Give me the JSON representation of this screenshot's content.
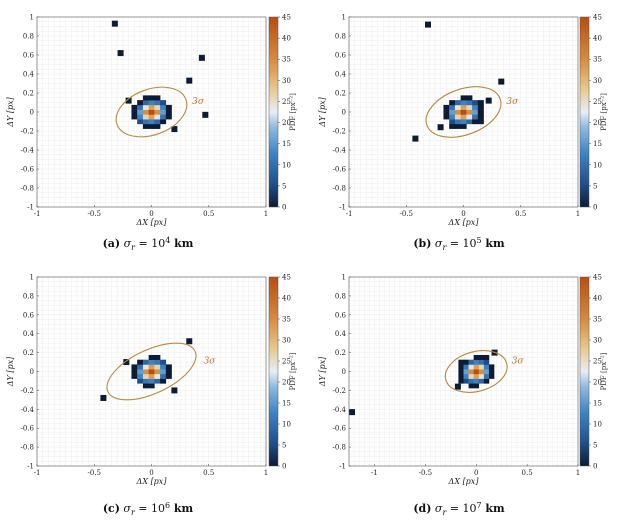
{
  "figure": {
    "captions": [
      {
        "tag": "(a)",
        "sym": "σ",
        "sub": "r",
        "eq": " = 10",
        "exp": "4",
        "unit": " km"
      },
      {
        "tag": "(b)",
        "sym": "σ",
        "sub": "r",
        "eq": " = 10",
        "exp": "5",
        "unit": " km"
      },
      {
        "tag": "(c)",
        "sym": "σ",
        "sub": "r",
        "eq": " = 10",
        "exp": "6",
        "unit": " km"
      },
      {
        "tag": "(d)",
        "sym": "σ",
        "sub": "r",
        "eq": " = 10",
        "exp": "7",
        "unit": " km"
      }
    ]
  },
  "chart_data": [
    {
      "type": "heatmap",
      "xlabel": "ΔX [px]",
      "ylabel": "ΔY [px]",
      "xlim": [
        -1,
        1
      ],
      "ylim": [
        -1,
        1
      ],
      "xticks": [
        -1,
        -0.5,
        0,
        0.5,
        1
      ],
      "yticks": [
        -1,
        -0.8,
        -0.6,
        -0.4,
        -0.2,
        0,
        0.2,
        0.4,
        0.6,
        0.8,
        1
      ],
      "colorbar": {
        "label": "PDF [px⁻²]",
        "min": 0,
        "max": 45,
        "ticks": [
          0,
          5,
          10,
          15,
          20,
          25,
          30,
          35,
          40,
          45
        ]
      },
      "ellipse": {
        "label": "3σ",
        "cx": 0,
        "cy": 0,
        "rx": 0.32,
        "ry": 0.24,
        "angle_deg": 20
      },
      "outliers": [
        [
          -0.32,
          0.93
        ],
        [
          -0.27,
          0.62
        ],
        [
          0.44,
          0.57
        ],
        [
          0.33,
          0.33
        ],
        [
          0.47,
          -0.03
        ],
        [
          -0.2,
          0.12
        ],
        [
          0.2,
          -0.18
        ]
      ],
      "grid": true
    },
    {
      "type": "heatmap",
      "xlabel": "ΔX [px]",
      "ylabel": "ΔY [px]",
      "xlim": [
        -1,
        1
      ],
      "ylim": [
        -1,
        1
      ],
      "xticks": [
        -1,
        -0.5,
        0,
        0.5,
        1
      ],
      "yticks": [
        -1,
        -0.8,
        -0.6,
        -0.4,
        -0.2,
        0,
        0.2,
        0.4,
        0.6,
        0.8,
        1
      ],
      "colorbar": {
        "label": "PDF [px⁻²]",
        "min": 0,
        "max": 45,
        "ticks": [
          0,
          5,
          10,
          15,
          20,
          25,
          30,
          35,
          40,
          45
        ]
      },
      "ellipse": {
        "label": "3σ",
        "cx": 0,
        "cy": 0,
        "rx": 0.34,
        "ry": 0.24,
        "angle_deg": 20
      },
      "outliers": [
        [
          -0.31,
          0.92
        ],
        [
          0.33,
          0.32
        ],
        [
          -0.42,
          -0.28
        ],
        [
          0.22,
          0.12
        ],
        [
          -0.2,
          -0.16
        ]
      ],
      "grid": true
    },
    {
      "type": "heatmap",
      "xlabel": "ΔX [px]",
      "ylabel": "ΔY [px]",
      "xlim": [
        -1,
        1
      ],
      "ylim": [
        -1,
        1
      ],
      "xticks": [
        -1,
        -0.5,
        0,
        0.5,
        1
      ],
      "yticks": [
        -1,
        -0.8,
        -0.6,
        -0.4,
        -0.2,
        0,
        0.2,
        0.4,
        0.6,
        0.8,
        1
      ],
      "colorbar": {
        "label": "PDF [px⁻²]",
        "min": 0,
        "max": 45,
        "ticks": [
          0,
          5,
          10,
          15,
          20,
          25,
          30,
          35,
          40,
          45
        ]
      },
      "ellipse": {
        "label": "3σ",
        "cx": 0,
        "cy": 0,
        "rx": 0.42,
        "ry": 0.23,
        "angle_deg": 25
      },
      "outliers": [
        [
          -0.42,
          -0.28
        ],
        [
          0.33,
          0.32
        ],
        [
          0.2,
          -0.2
        ],
        [
          -0.22,
          0.1
        ]
      ],
      "grid": true
    },
    {
      "type": "heatmap",
      "xlabel": "ΔX [px]",
      "ylabel": "ΔY [px]",
      "xlim": [
        -1.25,
        1
      ],
      "ylim": [
        -1,
        1
      ],
      "xticks": [
        -1,
        -0.5,
        0,
        0.5,
        1
      ],
      "yticks": [
        -1,
        -0.8,
        -0.6,
        -0.4,
        -0.2,
        0,
        0.2,
        0.4,
        0.6,
        0.8,
        1
      ],
      "colorbar": {
        "label": "PDF [px⁻²]",
        "min": 0,
        "max": 45,
        "ticks": [
          0,
          5,
          10,
          15,
          20,
          25,
          30,
          35,
          40,
          45
        ]
      },
      "ellipse": {
        "label": "3σ",
        "cx": 0,
        "cy": 0,
        "rx": 0.31,
        "ry": 0.21,
        "angle_deg": 15
      },
      "outliers": [
        [
          -1.22,
          -0.43
        ],
        [
          0.18,
          0.2
        ],
        [
          -0.18,
          -0.16
        ]
      ],
      "grid": true
    }
  ]
}
